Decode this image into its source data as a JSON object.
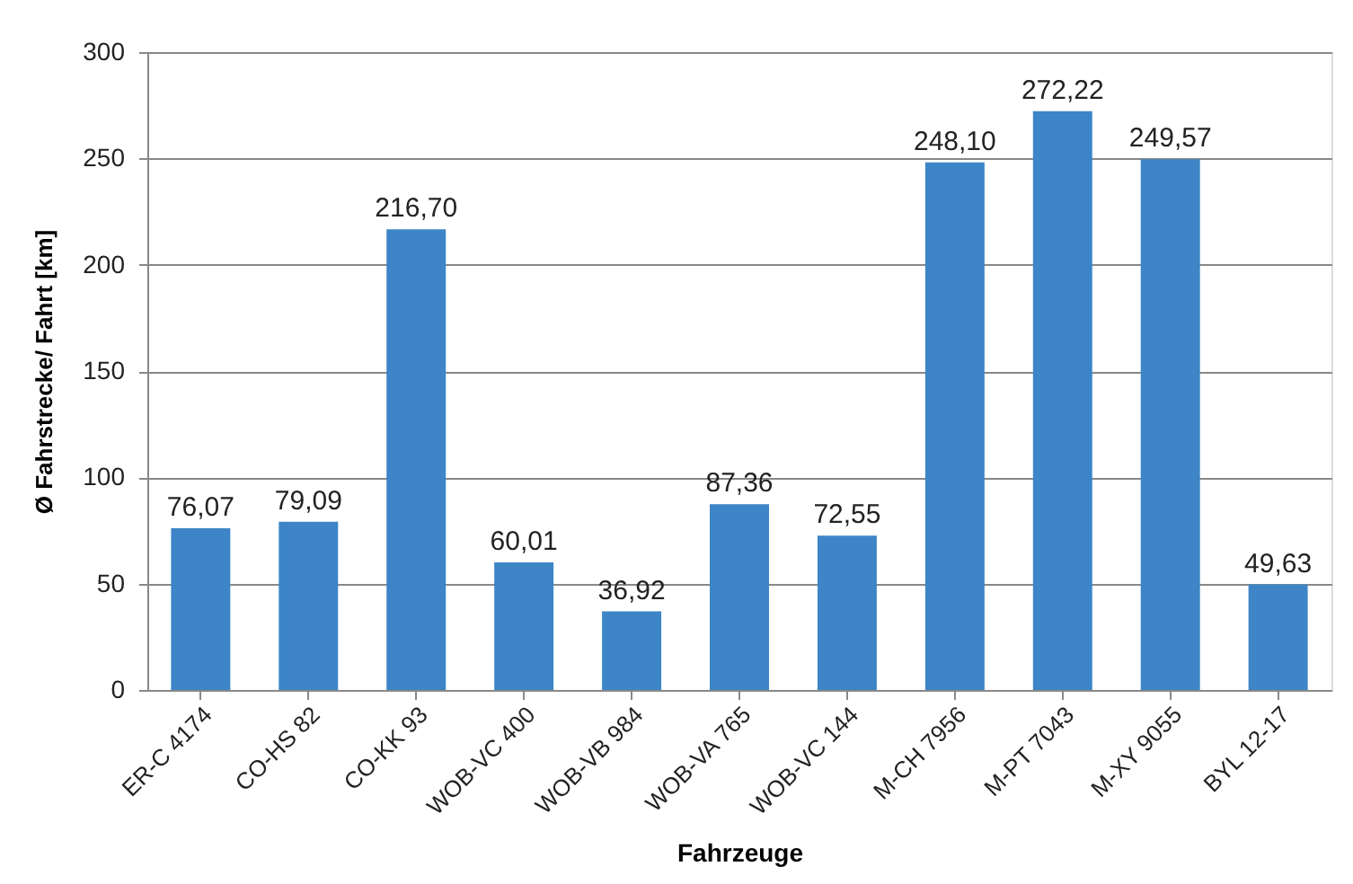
{
  "chart_data": {
    "type": "bar",
    "xlabel": "Fahrzeuge",
    "ylabel": "Ø Fahrstrecke/ Fahrt [km]",
    "categories": [
      "ER-C 4174",
      "CO-HS 82",
      "CO-KK 93",
      "WOB-VC 400",
      "WOB-VB 984",
      "WOB-VA 765",
      "WOB-VC 144",
      "M-CH 7956",
      "M-PT 7043",
      "M-XY 9055",
      "BYL 12-17"
    ],
    "values": [
      76.07,
      79.09,
      216.7,
      60.01,
      36.92,
      87.36,
      72.55,
      248.1,
      272.22,
      249.57,
      49.63
    ],
    "value_labels": [
      "76,07",
      "79,09",
      "216,70",
      "60,01",
      "36,92",
      "87,36",
      "72,55",
      "248,10",
      "272,22",
      "249,57",
      "49,63"
    ],
    "color": "#3d85c6",
    "ylim": [
      0,
      300
    ],
    "yticks": [
      0,
      50,
      100,
      150,
      200,
      250,
      300
    ],
    "grid": "y"
  }
}
